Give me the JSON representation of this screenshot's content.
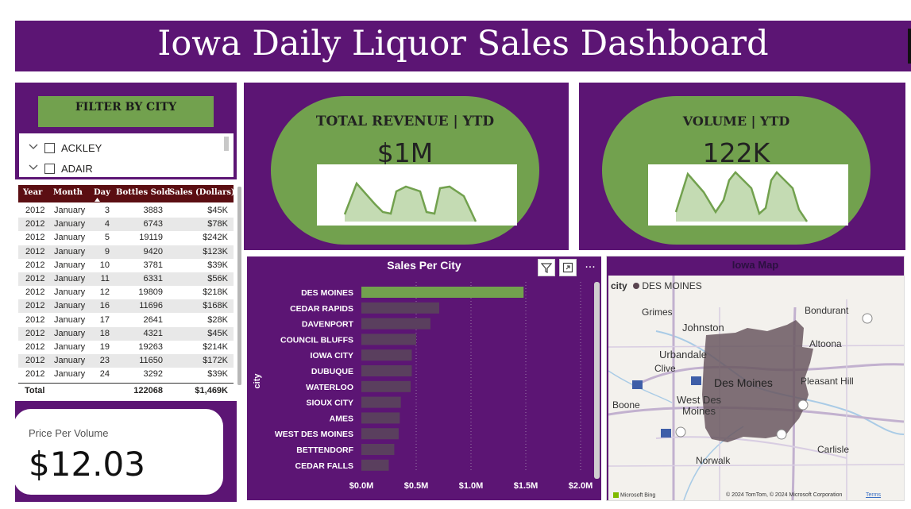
{
  "header": {
    "title": "Iowa Daily Liquor Sales Dashboard"
  },
  "filter": {
    "button_label": "FILTER BY CITY",
    "items": [
      {
        "label": "ACKLEY"
      },
      {
        "label": "ADAIR"
      }
    ]
  },
  "table": {
    "columns": [
      "Year",
      "Month",
      "Day",
      "Bottles Sold",
      "Sales (Dollars)"
    ],
    "rows": [
      [
        "2012",
        "January",
        "3",
        "3883",
        "$45K"
      ],
      [
        "2012",
        "January",
        "4",
        "6743",
        "$78K"
      ],
      [
        "2012",
        "January",
        "5",
        "19119",
        "$242K"
      ],
      [
        "2012",
        "January",
        "9",
        "9420",
        "$123K"
      ],
      [
        "2012",
        "January",
        "10",
        "3781",
        "$39K"
      ],
      [
        "2012",
        "January",
        "11",
        "6331",
        "$56K"
      ],
      [
        "2012",
        "January",
        "12",
        "19809",
        "$218K"
      ],
      [
        "2012",
        "January",
        "16",
        "11696",
        "$168K"
      ],
      [
        "2012",
        "January",
        "17",
        "2641",
        "$28K"
      ],
      [
        "2012",
        "January",
        "18",
        "4321",
        "$45K"
      ],
      [
        "2012",
        "January",
        "19",
        "19263",
        "$214K"
      ],
      [
        "2012",
        "January",
        "23",
        "11650",
        "$172K"
      ],
      [
        "2012",
        "January",
        "24",
        "3292",
        "$39K"
      ]
    ],
    "total": {
      "label": "Total",
      "bottles": "122068",
      "sales": "$1,469K"
    }
  },
  "ppv": {
    "label": "Price Per Volume",
    "value": "$12.03"
  },
  "kpi_revenue": {
    "title": "TOTAL REVENUE | YTD",
    "value": "$1M"
  },
  "kpi_volume": {
    "title": "VOLUME | YTD",
    "value": "122K"
  },
  "bar_chart": {
    "title": "Sales Per City",
    "icons": [
      "filter-icon",
      "focus-mode-icon",
      "more-options-icon"
    ],
    "more_glyph": "···"
  },
  "chart_data": {
    "type": "bar",
    "orientation": "horizontal",
    "title": "Sales Per City",
    "xlabel": "",
    "ylabel": "city",
    "categories": [
      "DES MOINES",
      "CEDAR RAPIDS",
      "DAVENPORT",
      "COUNCIL BLUFFS",
      "IOWA CITY",
      "DUBUQUE",
      "WATERLOO",
      "SIOUX CITY",
      "AMES",
      "WEST DES MOINES",
      "BETTENDORF",
      "CEDAR FALLS"
    ],
    "values": [
      1.48,
      0.71,
      0.63,
      0.5,
      0.46,
      0.46,
      0.45,
      0.36,
      0.35,
      0.34,
      0.3,
      0.25
    ],
    "unit": "M",
    "xlim": [
      0,
      2
    ],
    "xticks": [
      "$0.0M",
      "$0.5M",
      "$1.0M",
      "$1.5M",
      "$2.0M"
    ],
    "highlight_color": "#72a14e",
    "bar_color": "#5a3f5e",
    "grid": true
  },
  "map": {
    "title": "Iowa Map",
    "legend_field": "city",
    "legend_value": "DES MOINES",
    "towns": [
      "Grimes",
      "Johnston",
      "Bondurant",
      "Urbandale",
      "Altoona",
      "Clive",
      "Des Moines",
      "Pleasant Hill",
      "Boone",
      "West Des Moines",
      "Norwalk",
      "Carlisle"
    ],
    "copyright": "© 2024 TomTom, © 2024 Microsoft Corporation",
    "terms": "Terms",
    "provider": "Microsoft Bing"
  },
  "colors": {
    "purple": "#5c1574",
    "green": "#72a14e",
    "table_header": "#5b0e12"
  }
}
